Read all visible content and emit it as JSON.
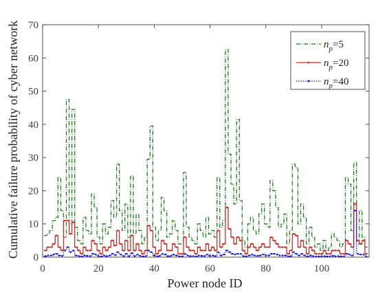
{
  "chart_data": {
    "type": "line",
    "style": "step",
    "xlabel": "Power node ID",
    "ylabel": "Cumulative failure probability of cyber network",
    "xlim": [
      0,
      117
    ],
    "ylim": [
      0,
      70
    ],
    "xticks": [
      0,
      20,
      40,
      60,
      80,
      100
    ],
    "yticks": [
      0,
      10,
      20,
      30,
      40,
      50,
      60,
      70
    ],
    "legend_position": "top-right",
    "grid": false,
    "series": [
      {
        "name": "n_p=5",
        "legend_main": "n",
        "legend_sub": "p",
        "legend_rest": "=5",
        "color": "#1a7a1a",
        "dash": "6,2,1,2",
        "values": [
          6.5,
          7,
          8,
          11,
          12,
          24,
          14,
          6,
          47.5,
          10,
          44.5,
          9,
          5,
          4,
          12,
          8,
          7,
          19,
          15,
          6,
          4,
          10,
          7,
          9,
          17,
          12,
          28,
          14,
          8,
          16,
          6,
          24.5,
          7,
          13,
          8,
          4,
          6,
          29.5,
          39.5,
          9,
          5,
          8,
          18,
          14,
          6,
          7,
          11,
          8,
          4,
          4,
          25.5,
          9,
          6,
          5,
          4,
          10,
          8,
          6,
          12,
          7,
          8,
          6,
          24,
          9,
          11,
          62.5,
          31,
          22,
          16,
          41.5,
          17,
          5,
          3,
          10,
          12,
          8,
          7,
          13,
          16,
          10,
          9,
          23,
          20,
          15,
          9,
          10,
          13,
          4,
          8,
          28,
          27,
          10,
          16,
          12,
          4,
          9,
          6,
          3,
          4,
          2,
          5,
          2,
          3,
          7,
          6,
          5,
          3,
          4,
          24,
          22,
          8,
          28.5,
          4,
          14,
          6,
          3
        ]
      },
      {
        "name": "n_p=20",
        "legend_main": "n",
        "legend_sub": "p",
        "legend_rest": "=20",
        "color": "#c83028",
        "dash": "",
        "values": [
          2,
          3,
          3,
          4,
          6.5,
          3,
          2,
          11,
          11,
          7,
          10.5,
          3,
          2,
          1,
          3,
          2,
          2,
          5,
          4,
          2,
          1,
          3,
          2,
          3,
          5,
          3.5,
          8,
          4,
          2,
          5,
          2,
          6.5,
          2,
          4,
          2,
          1,
          2,
          9.5,
          8,
          3,
          1,
          2,
          5,
          4,
          2,
          2,
          4,
          3,
          1,
          1,
          6,
          3,
          2,
          2,
          1,
          3,
          2,
          2,
          4,
          2,
          3,
          2,
          8,
          3,
          4,
          15,
          8.5,
          6,
          4,
          6,
          5,
          2,
          1,
          3,
          4,
          3,
          2,
          3,
          4,
          3,
          3,
          6,
          5,
          4,
          3,
          3,
          3,
          1,
          2,
          7,
          6.5,
          3,
          5,
          3,
          1,
          3,
          2,
          1,
          1,
          1,
          2,
          1,
          1,
          2,
          2,
          2,
          1,
          1,
          5,
          4,
          3,
          16,
          5,
          4,
          5,
          1
        ]
      },
      {
        "name": "n_p=40",
        "legend_main": "n",
        "legend_sub": "p",
        "legend_rest": "=40",
        "color": "#1a1ad8",
        "dash": "1.6,1.6",
        "values": [
          0.3,
          0.5,
          0.5,
          0.8,
          1,
          0.5,
          0.4,
          2,
          3,
          1.5,
          2,
          0.5,
          0.3,
          0.2,
          0.5,
          0.4,
          0.3,
          1,
          0.8,
          0.3,
          0.2,
          0.5,
          0.3,
          0.5,
          1,
          0.6,
          1.5,
          0.8,
          0.3,
          1,
          0.3,
          1.2,
          0.3,
          0.8,
          0.4,
          0.2,
          0.3,
          2,
          1.5,
          0.5,
          0.2,
          0.4,
          1,
          0.8,
          0.3,
          0.4,
          0.8,
          0.5,
          0.2,
          0.2,
          1,
          0.5,
          0.3,
          0.3,
          0.2,
          0.5,
          0.4,
          0.3,
          0.8,
          0.4,
          0.5,
          0.3,
          1.5,
          0.5,
          0.8,
          2,
          1.5,
          1,
          0.8,
          1,
          1,
          0.3,
          0.2,
          0.5,
          0.8,
          0.5,
          0.4,
          0.5,
          0.8,
          0.5,
          0.5,
          1,
          1,
          0.8,
          0.5,
          0.5,
          0.5,
          0.2,
          0.3,
          1.5,
          1,
          0.5,
          1,
          0.5,
          0.2,
          0.5,
          0.3,
          0.2,
          0.2,
          0.2,
          0.3,
          0.2,
          0.2,
          0.4,
          0.3,
          0.3,
          0.2,
          0.2,
          1,
          0.8,
          0.5,
          14,
          1,
          0.8,
          0.8,
          0.2
        ]
      }
    ]
  }
}
